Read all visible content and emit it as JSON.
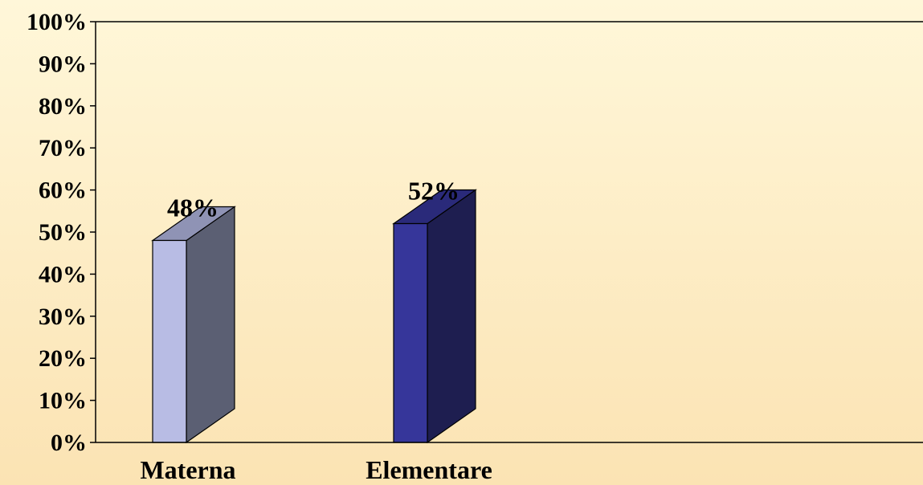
{
  "chart_data": {
    "type": "bar",
    "style": "3d",
    "categories": [
      "Materna",
      "Elementare"
    ],
    "values": [
      48,
      52
    ],
    "data_labels": [
      "48%",
      "52%"
    ],
    "ylim": [
      0,
      100
    ],
    "yticks": [
      "0%",
      "10%",
      "20%",
      "30%",
      "40%",
      "50%",
      "60%",
      "70%",
      "80%",
      "90%",
      "100%"
    ],
    "grid": false,
    "colors": [
      {
        "front": "#b8bce4",
        "side": "#5b5f73",
        "top": "#8f93b5"
      },
      {
        "front": "#36369a",
        "side": "#1e1e50",
        "top": "#2a2a7a"
      }
    ]
  }
}
